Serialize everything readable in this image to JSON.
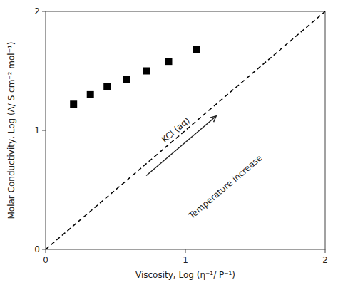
{
  "chart_data": {
    "type": "scatter",
    "xlabel": "Viscosity, Log (η⁻¹/ P⁻¹)",
    "ylabel": "Molar Conductivity, Log (Λ/ S cm⁻² mol⁻¹)",
    "xlim": [
      0,
      2
    ],
    "ylim": [
      0,
      2
    ],
    "xticks": [
      0,
      1,
      2
    ],
    "yticks": [
      0,
      1,
      2
    ],
    "grid": false,
    "series": [
      {
        "type": "scatter",
        "marker": "square",
        "color": "black",
        "x": [
          0.2,
          0.32,
          0.44,
          0.58,
          0.72,
          0.88,
          1.08
        ],
        "values": [
          1.22,
          1.3,
          1.37,
          1.43,
          1.5,
          1.58,
          1.68
        ]
      },
      {
        "type": "line",
        "line_style": "dashed",
        "color": "black",
        "x": [
          0,
          2
        ],
        "values": [
          0,
          2
        ]
      }
    ],
    "annotations": [
      {
        "text": "KCl (aq)",
        "x": 0.93,
        "y": 0.88
      },
      {
        "text": "Temperature increase",
        "x": 0.72,
        "y": 0.62,
        "x2": 1.22,
        "y2": 1.12
      }
    ]
  }
}
